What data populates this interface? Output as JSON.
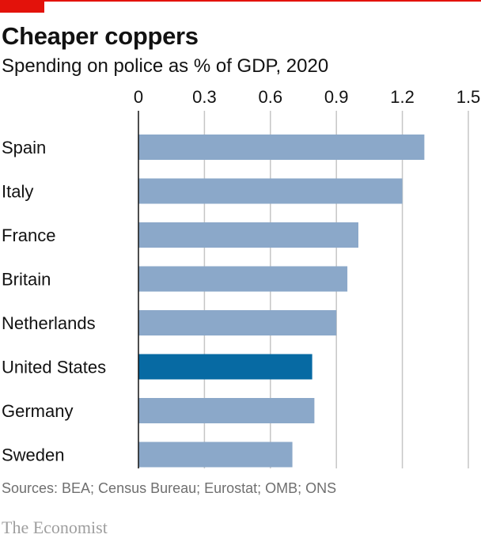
{
  "header": {
    "title": "Cheaper coppers",
    "subtitle": "Spending on police as % of GDP, 2020"
  },
  "footer": {
    "source": "Sources: BEA; Census Bureau; Eurostat; OMB; ONS",
    "logo_text": "The Economist"
  },
  "colors": {
    "bar": "#8ba8c9",
    "highlight_bar": "#076aa3",
    "accent_red": "#e3120b",
    "grid": "#c6c6c6"
  },
  "chart_data": {
    "type": "bar",
    "orientation": "horizontal",
    "categories": [
      "Spain",
      "Italy",
      "France",
      "Britain",
      "Netherlands",
      "United States",
      "Germany",
      "Sweden"
    ],
    "values": [
      1.3,
      1.2,
      1.0,
      0.95,
      0.9,
      0.79,
      0.8,
      0.7
    ],
    "highlight": "United States",
    "xlim": [
      0,
      1.5
    ],
    "xticks": [
      0,
      0.3,
      0.6,
      0.9,
      1.2,
      1.5
    ],
    "xtick_labels": [
      "0",
      "0.3",
      "0.6",
      "0.9",
      "1.2",
      "1.5"
    ],
    "grid": true,
    "title": "Cheaper coppers",
    "subtitle": "Spending on police as % of GDP, 2020"
  }
}
